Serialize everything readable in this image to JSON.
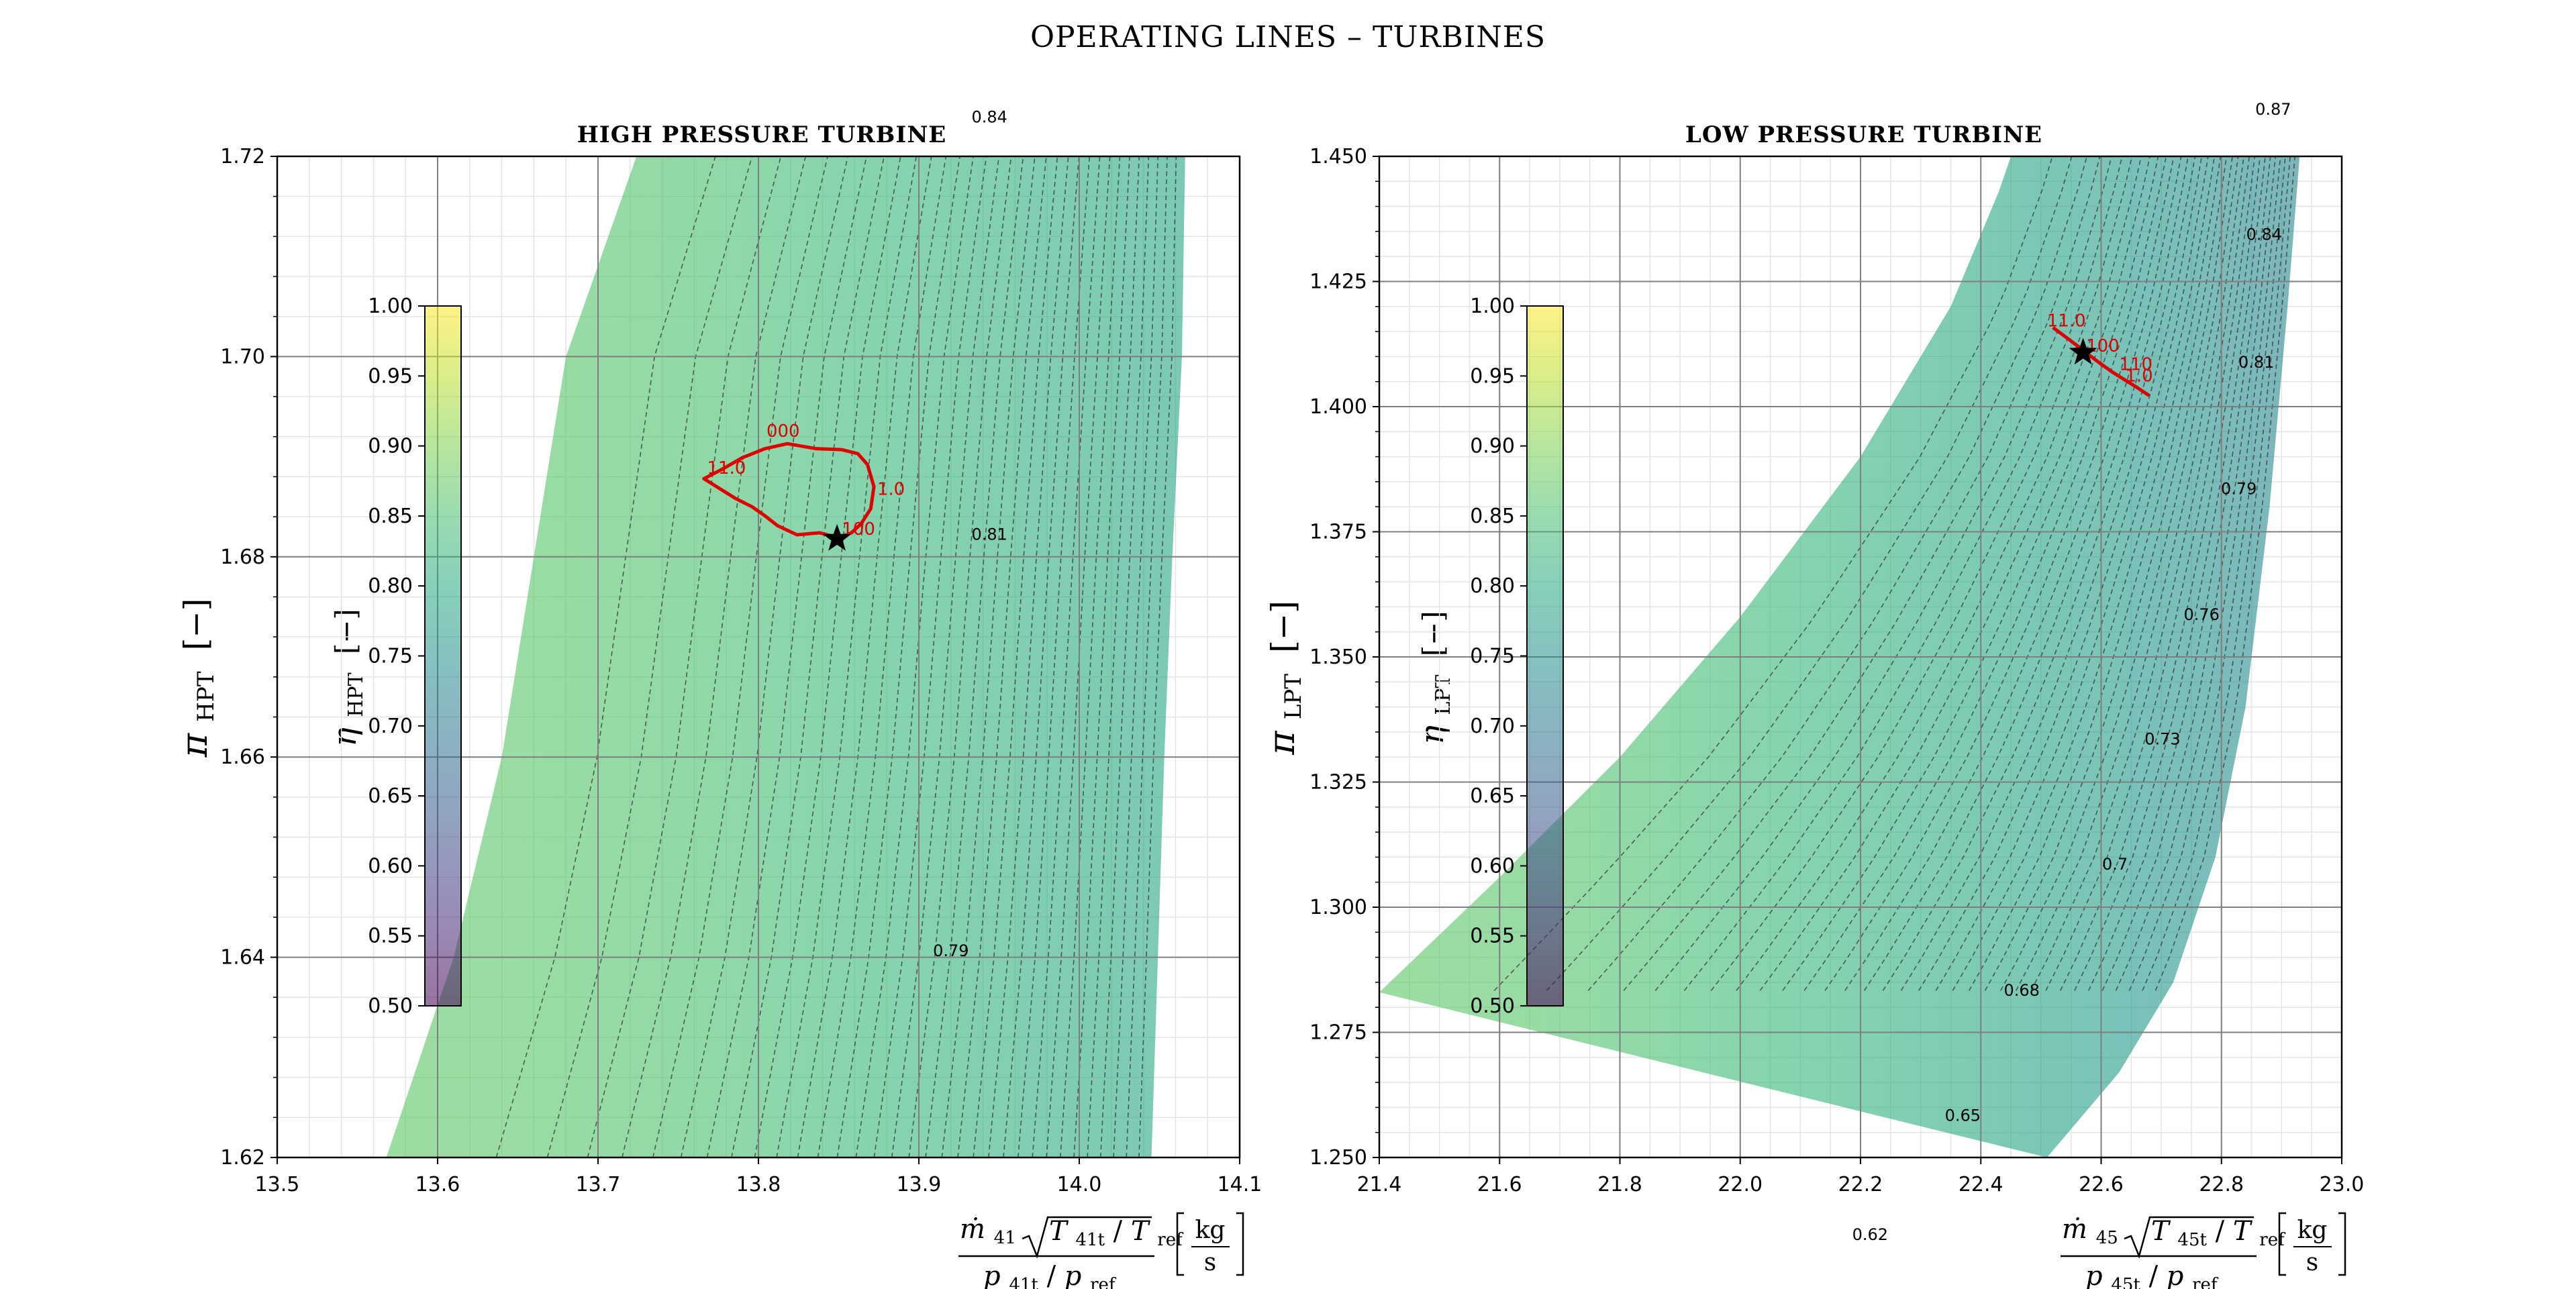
{
  "figure": {
    "suptitle": "OPERATING LINES  –  TURBINES"
  },
  "colors": {
    "colormap": [
      "#440154",
      "#482878",
      "#3e4a89",
      "#31688e",
      "#26828e",
      "#1f9e89",
      "#35b779",
      "#6ece58",
      "#b5de2b",
      "#fde725"
    ],
    "operating_line": "#e00000",
    "design_point": "#000000",
    "grid_major": "#7f7f7f",
    "grid_minor": "#e4e4e4"
  },
  "chart_data": [
    {
      "type": "line",
      "id": "hpt",
      "title": "HIGH PRESSURE TURBINE",
      "xlabel": {
        "num_lhs": "ṁ",
        "num_lhs_sub": "41",
        "num_root_T": "T",
        "num_root_sub": "41t",
        "num_root_den": "T",
        "num_root_den_sub": "ref",
        "den_p": "p",
        "den_p_sub": "41t",
        "den_pref": "p",
        "den_pref_sub": "ref",
        "unit_num": "kg",
        "unit_den": "s"
      },
      "ylabel": {
        "sym": "π",
        "sub": "HPT",
        "bracket": "[−]"
      },
      "xlim": [
        13.5,
        14.1
      ],
      "ylim": [
        1.62,
        1.72
      ],
      "xticks": [
        "13.5",
        "13.6",
        "13.7",
        "13.8",
        "13.9",
        "14.0",
        "14.1"
      ],
      "yticks": [
        "1.62",
        "1.64",
        "1.66",
        "1.68",
        "1.70",
        "1.72"
      ],
      "colorbar": {
        "label_sym": "η",
        "label_sub": "HPT",
        "label_bracket": "[−]",
        "range": [
          0.5,
          1.0
        ],
        "ticks": [
          "0.50",
          "0.55",
          "0.60",
          "0.65",
          "0.70",
          "0.75",
          "0.80",
          "0.85",
          "0.90",
          "0.95",
          "1.00"
        ]
      },
      "efficiency_labels": [
        {
          "text": "0.84",
          "x": 13.944,
          "y": 1.7234
        },
        {
          "text": "0.81",
          "x": 13.944,
          "y": 1.6817
        },
        {
          "text": "0.79",
          "x": 13.92,
          "y": 1.6401
        }
      ],
      "map_region": {
        "left_edge": [
          [
            13.568,
            1.62
          ],
          [
            13.61,
            1.64
          ],
          [
            13.64,
            1.66
          ],
          [
            13.66,
            1.68
          ],
          [
            13.68,
            1.7
          ],
          [
            13.724,
            1.72
          ]
        ],
        "right_edge": [
          [
            14.066,
            1.72
          ],
          [
            14.064,
            1.7
          ],
          [
            14.058,
            1.68
          ],
          [
            14.053,
            1.66
          ],
          [
            14.049,
            1.64
          ],
          [
            14.045,
            1.62
          ]
        ],
        "eff_left": 0.87,
        "eff_right": 0.79
      },
      "operating_line": {
        "x": [
          13.852,
          13.858,
          13.864,
          13.87,
          13.872,
          13.868,
          13.862,
          13.852,
          13.836,
          13.818,
          13.804,
          13.79,
          13.778,
          13.766,
          13.776,
          13.786,
          13.796,
          13.804,
          13.812,
          13.824,
          13.838,
          13.848,
          13.852
        ],
        "y": [
          1.682,
          1.6824,
          1.6833,
          1.6848,
          1.687,
          1.6892,
          1.6903,
          1.6907,
          1.6908,
          1.6913,
          1.6908,
          1.6899,
          1.6888,
          1.6878,
          1.6868,
          1.6858,
          1.685,
          1.6841,
          1.6831,
          1.6822,
          1.6824,
          1.682,
          1.682
        ]
      },
      "op_labels": [
        {
          "text": "11.0",
          "x": 13.768,
          "y": 1.6883
        },
        {
          "text": "000",
          "x": 13.805,
          "y": 1.692
        },
        {
          "text": "1.0",
          "x": 13.874,
          "y": 1.6862
        },
        {
          "text": "100",
          "x": 13.852,
          "y": 1.6822
        }
      ],
      "design_point": {
        "x": 13.849,
        "y": 1.6818
      }
    },
    {
      "type": "line",
      "id": "lpt",
      "title": "LOW PRESSURE TURBINE",
      "xlabel": {
        "num_lhs": "ṁ",
        "num_lhs_sub": "45",
        "num_root_T": "T",
        "num_root_sub": "45t",
        "num_root_den": "T",
        "num_root_den_sub": "ref",
        "den_p": "p",
        "den_p_sub": "45t",
        "den_pref": "p",
        "den_pref_sub": "ref",
        "unit_num": "kg",
        "unit_den": "s"
      },
      "ylabel": {
        "sym": "π",
        "sub": "LPT",
        "bracket": "[−]"
      },
      "xlim": [
        21.4,
        23.0
      ],
      "ylim": [
        1.25,
        1.45
      ],
      "xticks": [
        "21.4",
        "21.6",
        "21.8",
        "22.0",
        "22.2",
        "22.4",
        "22.6",
        "22.8",
        "23.0"
      ],
      "yticks": [
        "1.250",
        "1.275",
        "1.300",
        "1.325",
        "1.350",
        "1.375",
        "1.400",
        "1.425",
        "1.450"
      ],
      "colorbar": {
        "label_sym": "η",
        "label_sub": "LPT",
        "label_bracket": "[−]",
        "range": [
          0.5,
          1.0
        ],
        "ticks": [
          "0.50",
          "0.55",
          "0.60",
          "0.65",
          "0.70",
          "0.75",
          "0.80",
          "0.85",
          "0.90",
          "0.95",
          "1.00"
        ]
      },
      "efficiency_labels": [
        {
          "text": "0.87",
          "x": 22.886,
          "y": 1.4583
        },
        {
          "text": "0.84",
          "x": 22.871,
          "y": 1.4333
        },
        {
          "text": "0.81",
          "x": 22.858,
          "y": 1.4078
        },
        {
          "text": "0.79",
          "x": 22.829,
          "y": 1.3825
        },
        {
          "text": "0.76",
          "x": 22.767,
          "y": 1.3574
        },
        {
          "text": "0.73",
          "x": 22.702,
          "y": 1.3325
        },
        {
          "text": "0.7",
          "x": 22.623,
          "y": 1.3075
        },
        {
          "text": "0.68",
          "x": 22.468,
          "y": 1.2823
        },
        {
          "text": "0.65",
          "x": 22.37,
          "y": 1.2573
        },
        {
          "text": "0.62",
          "x": 22.216,
          "y": 1.2335
        }
      ],
      "map_region": {
        "left_edge": [
          [
            21.4,
            1.283
          ],
          [
            21.6,
            1.306
          ],
          [
            21.8,
            1.33
          ],
          [
            22.0,
            1.358
          ],
          [
            22.2,
            1.39
          ],
          [
            22.35,
            1.42
          ],
          [
            22.43,
            1.443
          ],
          [
            22.45,
            1.45
          ]
        ],
        "right_edge": [
          [
            22.93,
            1.45
          ],
          [
            22.91,
            1.42
          ],
          [
            22.88,
            1.38
          ],
          [
            22.84,
            1.34
          ],
          [
            22.79,
            1.31
          ],
          [
            22.72,
            1.285
          ],
          [
            22.63,
            1.267
          ],
          [
            22.51,
            1.25
          ]
        ],
        "eff_left": 0.87,
        "eff_right": 0.73
      },
      "operating_line": {
        "x": [
          22.52,
          22.54,
          22.56,
          22.58,
          22.6,
          22.62,
          22.64,
          22.66,
          22.68
        ],
        "y": [
          1.4158,
          1.414,
          1.4122,
          1.4103,
          1.4085,
          1.4068,
          1.4053,
          1.4038,
          1.4022
        ]
      },
      "op_labels": [
        {
          "text": "11.0",
          "x": 22.51,
          "y": 1.416
        },
        {
          "text": "100",
          "x": 22.575,
          "y": 1.411
        },
        {
          "text": "110",
          "x": 22.63,
          "y": 1.4073
        },
        {
          "text": "1.0",
          "x": 22.64,
          "y": 1.405
        }
      ],
      "design_point": {
        "x": 22.57,
        "y": 1.4108
      }
    }
  ]
}
